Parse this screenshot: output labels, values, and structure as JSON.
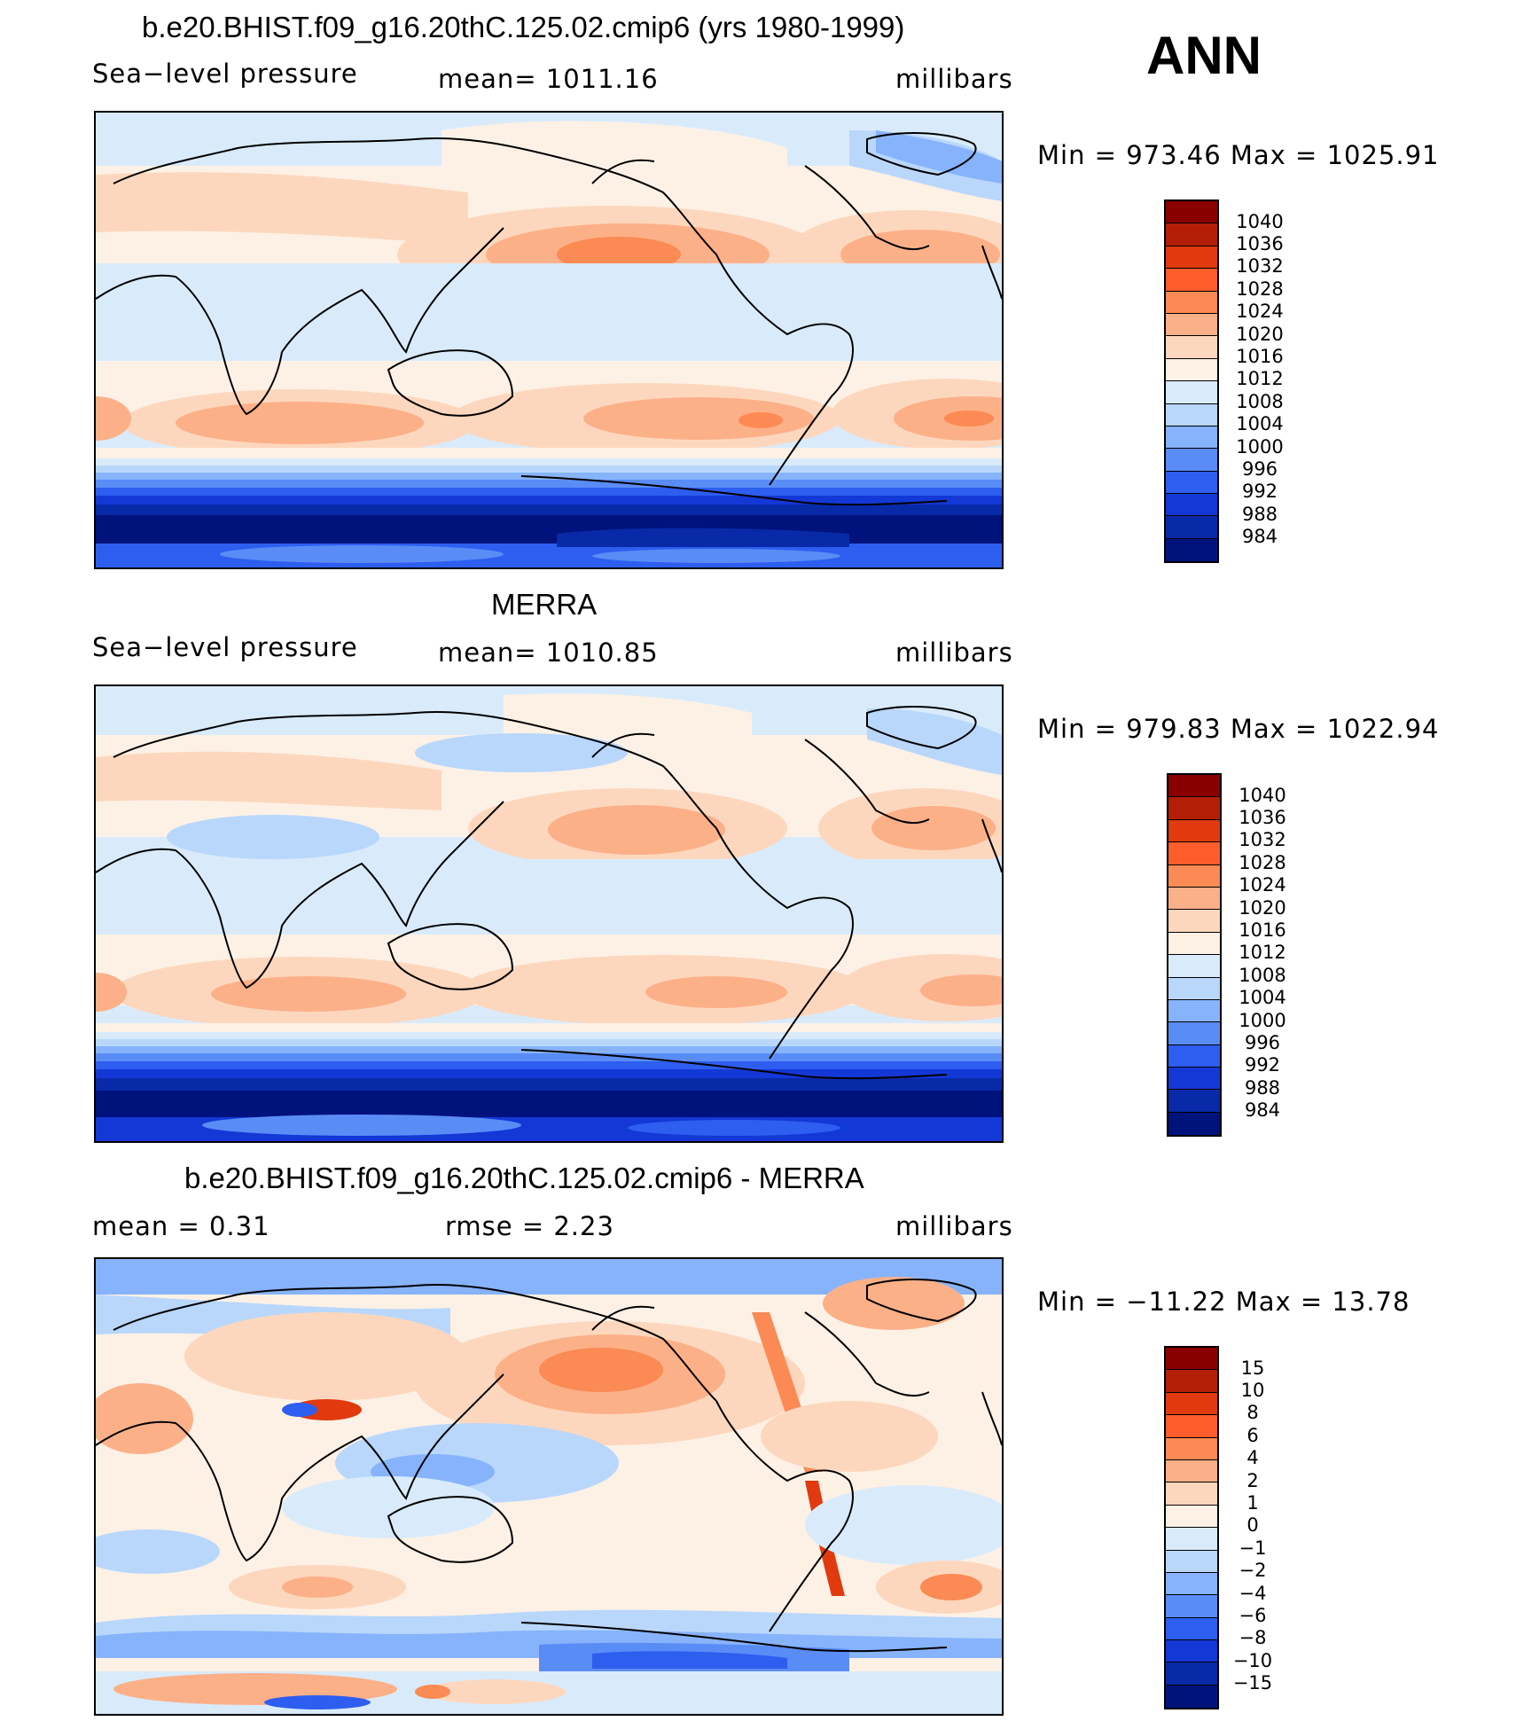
{
  "season": "ANN",
  "colors": {
    "abs_scale": [
      "#8a0000",
      "#b41e06",
      "#e03a0e",
      "#fc5d2a",
      "#fb8a54",
      "#fcb088",
      "#fdd7bd",
      "#fdf1e6",
      "#d9ebfb",
      "#b8d7fb",
      "#86b3fb",
      "#5a8cf6",
      "#2d5eef",
      "#1338d6",
      "#082aa8",
      "#00127c"
    ],
    "diff_scale": [
      "#8a0000",
      "#b41e06",
      "#e03a0e",
      "#fc5d2a",
      "#fb8a54",
      "#fcb088",
      "#fdd7bd",
      "#fdf1e6",
      "#d9ebfb",
      "#b8d7fb",
      "#86b3fb",
      "#5a8cf6",
      "#2d5eef",
      "#1338d6",
      "#082aa8",
      "#00127c"
    ]
  },
  "panels": [
    {
      "title": "b.e20.BHIST.f09_g16.20thC.125.02.cmip6 (yrs 1980-1999)",
      "left_label": "Sea−level pressure",
      "center_label": "mean=  1011.16",
      "units": "millibars",
      "minmax": "Min  =  973.46  Max  =  1025.91",
      "colorbar_labels": [
        "1040",
        "1036",
        "1032",
        "1028",
        "1024",
        "1020",
        "1016",
        "1012",
        "1008",
        "1004",
        "1000",
        "996",
        "992",
        "988",
        "984"
      ]
    },
    {
      "title": "MERRA",
      "left_label": "Sea−level pressure",
      "center_label": "mean=  1010.85",
      "units": "millibars",
      "minmax": "Min  =  979.83  Max  =  1022.94",
      "colorbar_labels": [
        "1040",
        "1036",
        "1032",
        "1028",
        "1024",
        "1020",
        "1016",
        "1012",
        "1008",
        "1004",
        "1000",
        "996",
        "992",
        "988",
        "984"
      ]
    },
    {
      "title": "b.e20.BHIST.f09_g16.20thC.125.02.cmip6 - MERRA",
      "left_label": "mean  =     0.31",
      "center_label": "rmse  =     2.23",
      "units": "millibars",
      "minmax": "Min  =  −11.22  Max  =    13.78",
      "colorbar_labels": [
        "15",
        "10",
        "8",
        "6",
        "4",
        "2",
        "1",
        "0",
        "−1",
        "−2",
        "−4",
        "−6",
        "−8",
        "−10",
        "−15"
      ]
    }
  ]
}
